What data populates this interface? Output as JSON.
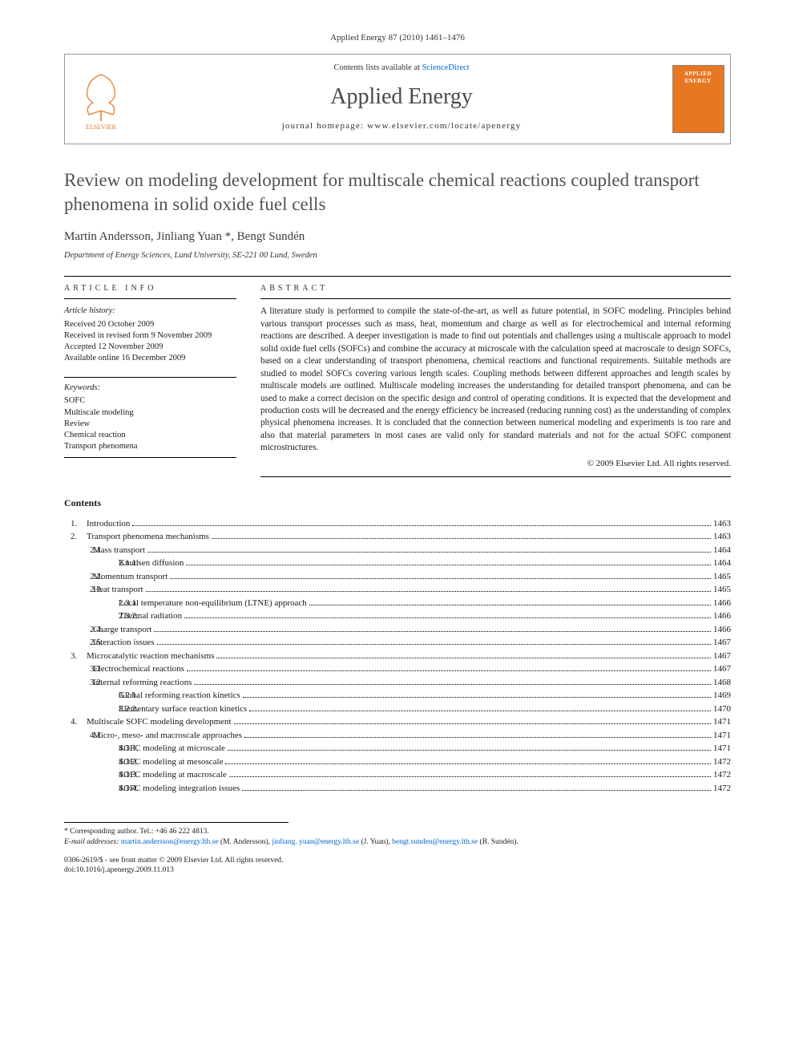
{
  "citation": "Applied Energy 87 (2010) 1461–1476",
  "header": {
    "contents_prefix": "Contents lists available at ",
    "contents_link": "ScienceDirect",
    "journal": "Applied Energy",
    "homepage_prefix": "journal homepage: ",
    "homepage_url": "www.elsevier.com/locate/apenergy",
    "cover_label1": "APPLIED",
    "cover_label2": "ENERGY",
    "cover_bg": "#e87722"
  },
  "title": "Review on modeling development for multiscale chemical reactions coupled transport phenomena in solid oxide fuel cells",
  "authors": "Martin Andersson, Jinliang Yuan *, Bengt Sundén",
  "affiliation": "Department of Energy Sciences, Lund University, SE-221 00 Lund, Sweden",
  "info": {
    "head": "ARTICLE INFO",
    "history_head": "Article history:",
    "history": [
      "Received 20 October 2009",
      "Received in revised form 9 November 2009",
      "Accepted 12 November 2009",
      "Available online 16 December 2009"
    ],
    "kw_head": "Keywords:",
    "keywords": [
      "SOFC",
      "Multiscale modeling",
      "Review",
      "Chemical reaction",
      "Transport phenomena"
    ]
  },
  "abstract": {
    "head": "ABSTRACT",
    "text": "A literature study is performed to compile the state-of-the-art, as well as future potential, in SOFC modeling. Principles behind various transport processes such as mass, heat, momentum and charge as well as for electrochemical and internal reforming reactions are described. A deeper investigation is made to find out potentials and challenges using a multiscale approach to model solid oxide fuel cells (SOFCs) and combine the accuracy at microscale with the calculation speed at macroscale to design SOFCs, based on a clear understanding of transport phenomena, chemical reactions and functional requirements. Suitable methods are studied to model SOFCs covering various length scales. Coupling methods between different approaches and length scales by multiscale models are outlined. Multiscale modeling increases the understanding for detailed transport phenomena, and can be used to make a correct decision on the specific design and control of operating conditions. It is expected that the development and production costs will be decreased and the energy efficiency be increased (reducing running cost) as the understanding of complex physical phenomena increases. It is concluded that the connection between numerical modeling and experiments is too rare and also that material parameters in most cases are valid only for standard materials and not for the actual SOFC component microstructures.",
    "copyright": "© 2009 Elsevier Ltd. All rights reserved."
  },
  "contents_head": "Contents",
  "toc": [
    {
      "l": 1,
      "n": "1.",
      "t": "Introduction",
      "p": "1463"
    },
    {
      "l": 1,
      "n": "2.",
      "t": "Transport phenomena mechanisms",
      "p": "1463"
    },
    {
      "l": 2,
      "n": "2.1.",
      "t": "Mass transport",
      "p": "1464"
    },
    {
      "l": 3,
      "n": "2.1.1.",
      "t": "Knudsen diffusion",
      "p": "1464"
    },
    {
      "l": 2,
      "n": "2.2.",
      "t": "Momentum transport",
      "p": "1465"
    },
    {
      "l": 2,
      "n": "2.3.",
      "t": "Heat transport",
      "p": "1465"
    },
    {
      "l": 3,
      "n": "2.3.1.",
      "t": "Local temperature non-equilibrium (LTNE) approach",
      "p": "1466"
    },
    {
      "l": 3,
      "n": "2.3.2.",
      "t": "Thermal radiation",
      "p": "1466"
    },
    {
      "l": 2,
      "n": "2.4.",
      "t": "Charge transport",
      "p": "1466"
    },
    {
      "l": 2,
      "n": "2.5.",
      "t": "Interaction issues",
      "p": "1467"
    },
    {
      "l": 1,
      "n": "3.",
      "t": "Microcatalytic reaction mechanisms",
      "p": "1467"
    },
    {
      "l": 2,
      "n": "3.1.",
      "t": "Electrochemical reactions",
      "p": "1467"
    },
    {
      "l": 2,
      "n": "3.2.",
      "t": "Internal reforming reactions",
      "p": "1468"
    },
    {
      "l": 3,
      "n": "3.2.1.",
      "t": "Global reforming reaction kinetics",
      "p": "1469"
    },
    {
      "l": 3,
      "n": "3.2.2.",
      "t": "Elementary surface reaction kinetics",
      "p": "1470"
    },
    {
      "l": 1,
      "n": "4.",
      "t": "Multiscale SOFC modeling development",
      "p": "1471"
    },
    {
      "l": 2,
      "n": "4.1.",
      "t": "Micro-, meso- and macroscale approaches",
      "p": "1471"
    },
    {
      "l": 3,
      "n": "4.1.1.",
      "t": "SOFC modeling at microscale",
      "p": "1471"
    },
    {
      "l": 3,
      "n": "4.1.2.",
      "t": "SOFC modeling at mesoscale",
      "p": "1472"
    },
    {
      "l": 3,
      "n": "4.1.3.",
      "t": "SOFC modeling at macroscale",
      "p": "1472"
    },
    {
      "l": 3,
      "n": "4.1.4.",
      "t": "SOFC modeling integration issues",
      "p": "1472"
    }
  ],
  "footnotes": {
    "corr": "* Corresponding author. Tel.: +46 46 222 4813.",
    "email_label": "E-mail addresses: ",
    "emails": [
      {
        "addr": "martin.andersson@energy.lth.se",
        "who": "(M. Andersson)"
      },
      {
        "addr": "jinliang. yuan@energy.lth.se",
        "who": "(J. Yuan)"
      },
      {
        "addr": "bengt.sunden@energy.lth.se",
        "who": "(B. Sundén)."
      }
    ]
  },
  "bottom": {
    "line1": "0306-2619/$ - see front matter © 2009 Elsevier Ltd. All rights reserved.",
    "line2": "doi:10.1016/j.apenergy.2009.11.013"
  },
  "colors": {
    "text": "#1a1a1a",
    "link": "#0066cc",
    "title_gray": "#525252",
    "border": "#999999",
    "cover_bg": "#e87722"
  }
}
